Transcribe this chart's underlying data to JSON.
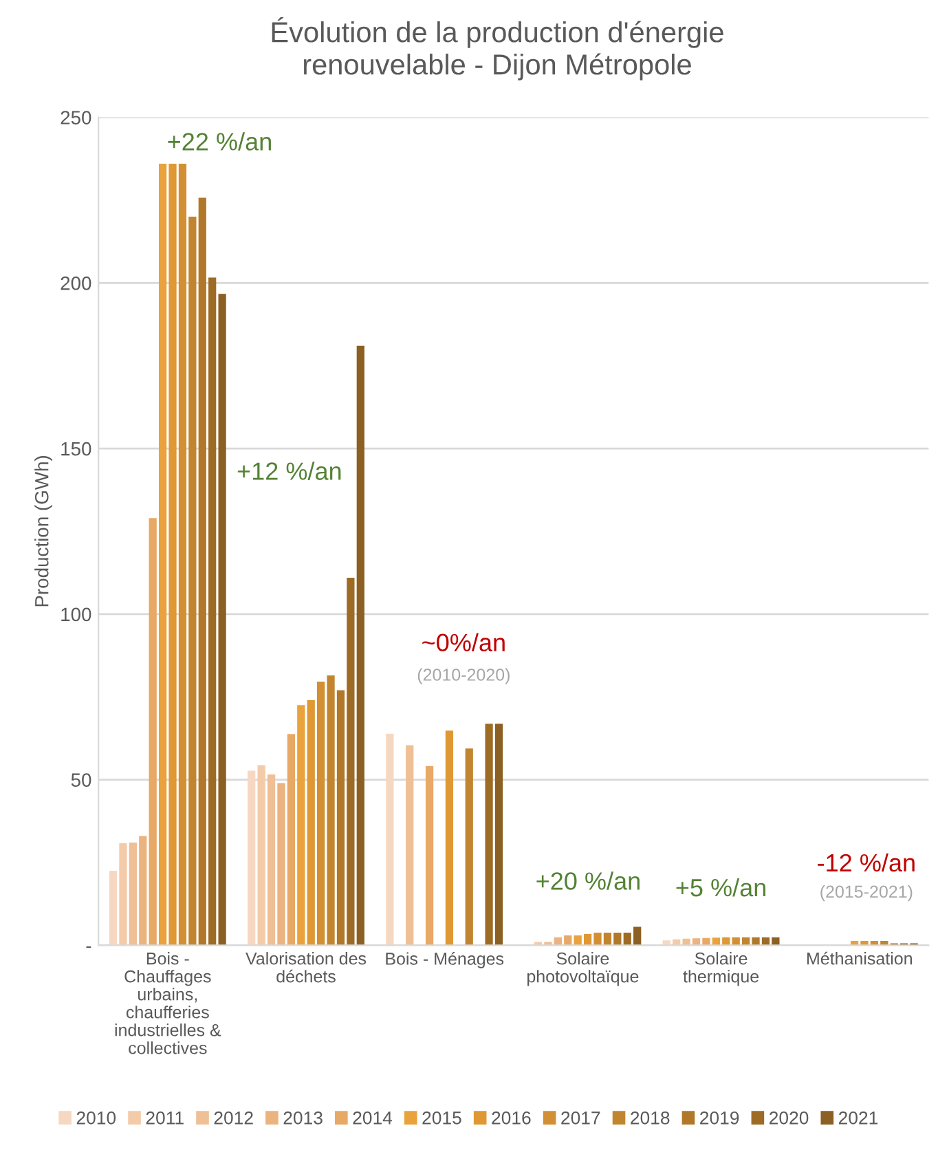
{
  "chart_data": {
    "type": "bar",
    "title": "Évolution de la production d'énergie\nrenouvelable - Dijon Métropole",
    "ylabel": "Production (GWh)",
    "categories": [
      "Bois -\nChauffages\nurbains,\nchaufferies\nindustrielles &\ncollectives",
      "Valorisation des\ndéchets",
      "Bois - Ménages",
      "Solaire\nphotovoltaïque",
      "Solaire\nthermique",
      "Méthanisation"
    ],
    "series": [
      {
        "name": "2010",
        "color": "#f6d8c2",
        "values": [
          22.5,
          52.7,
          63.9,
          null,
          1.5,
          null
        ]
      },
      {
        "name": "2011",
        "color": "#f3cba9",
        "values": [
          30.8,
          54.4,
          null,
          1,
          1.8,
          null
        ]
      },
      {
        "name": "2012",
        "color": "#efbf95",
        "values": [
          31,
          51.6,
          60.4,
          1,
          2,
          null
        ]
      },
      {
        "name": "2013",
        "color": "#ebb380",
        "values": [
          33,
          49,
          null,
          2.4,
          2.1,
          null
        ]
      },
      {
        "name": "2014",
        "color": "#e8a866",
        "values": [
          129,
          63.8,
          54.1,
          3,
          2.2,
          null
        ]
      },
      {
        "name": "2015",
        "color": "#e9a23c",
        "values": [
          236,
          72.5,
          null,
          3,
          2.3,
          1.3
        ]
      },
      {
        "name": "2016",
        "color": "#df9833",
        "values": [
          236,
          74,
          64.8,
          3.4,
          2.4,
          1.3
        ]
      },
      {
        "name": "2017",
        "color": "#d28f33",
        "values": [
          236,
          79.6,
          null,
          3.8,
          2.4,
          1.3
        ]
      },
      {
        "name": "2018",
        "color": "#c2852f",
        "values": [
          220,
          81.5,
          59.4,
          3.8,
          2.4,
          1.3
        ]
      },
      {
        "name": "2019",
        "color": "#b1782a",
        "values": [
          225.7,
          77,
          null,
          3.8,
          2.4,
          0.6
        ]
      },
      {
        "name": "2020",
        "color": "#9e6b25",
        "values": [
          201.6,
          111,
          66.9,
          3.8,
          2.4,
          0.6
        ]
      },
      {
        "name": "2021",
        "color": "#8c5f22",
        "values": [
          196.7,
          181,
          66.9,
          5.6,
          2.4,
          0.6
        ]
      }
    ],
    "ylim": [
      0,
      250
    ],
    "yticks": [
      {
        "value": 0,
        "label": "-"
      },
      50,
      100,
      150,
      200,
      250
    ],
    "grid": "y",
    "legend": "bottom",
    "annotations": [
      "+22 %/an",
      "+12 %/an",
      "~0%/an",
      "(2010-2020)",
      "+20 %/an",
      "+5 %/an",
      "-12 %/an",
      "(2015-2021)"
    ]
  }
}
